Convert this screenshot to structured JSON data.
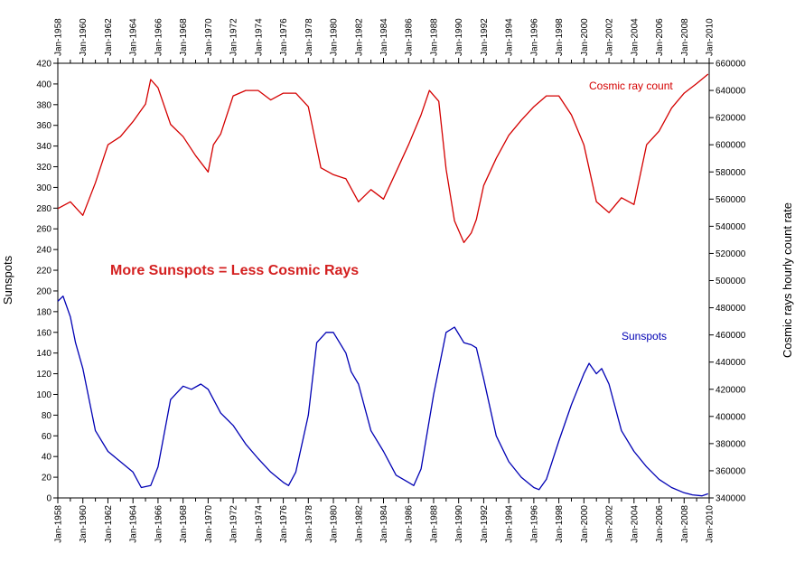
{
  "chart_data": {
    "type": "line",
    "title": "",
    "x_axis": {
      "range": [
        "Jan-1958",
        "Jan-2010"
      ],
      "tick_labels": [
        "Jan-1958",
        "Jan-1960",
        "Jan-1962",
        "Jan-1964",
        "Jan-1966",
        "Jan-1968",
        "Jan-1970",
        "Jan-1972",
        "Jan-1974",
        "Jan-1976",
        "Jan-1978",
        "Jan-1980",
        "Jan-1982",
        "Jan-1984",
        "Jan-1986",
        "Jan-1988",
        "Jan-1990",
        "Jan-1992",
        "Jan-1994",
        "Jan-1996",
        "Jan-1998",
        "Jan-2000",
        "Jan-2002",
        "Jan-2004",
        "Jan-2006",
        "Jan-2008",
        "Jan-2010"
      ],
      "minor_ticks": "yearly"
    },
    "y_left": {
      "label": "Sunspots",
      "range": [
        0,
        420
      ],
      "tick_labels": [
        "0",
        "20",
        "40",
        "60",
        "80",
        "100",
        "120",
        "140",
        "160",
        "180",
        "200",
        "220",
        "240",
        "260",
        "280",
        "300",
        "320",
        "340",
        "360",
        "380",
        "400",
        "420"
      ]
    },
    "y_right": {
      "label": "Cosmic rays hourly count rate",
      "range": [
        340000,
        660000
      ],
      "tick_labels": [
        "340000",
        "360000",
        "380000",
        "400000",
        "420000",
        "440000",
        "460000",
        "480000",
        "500000",
        "520000",
        "540000",
        "560000",
        "580000",
        "600000",
        "620000",
        "640000",
        "660000"
      ]
    },
    "annotation": "More Sunspots = Less Cosmic Rays",
    "series": [
      {
        "name": "Cosmic ray count",
        "axis": "right",
        "color": "#d40000",
        "x": [
          "1958-01",
          "1959-01",
          "1960-01",
          "1961-01",
          "1962-01",
          "1963-01",
          "1964-01",
          "1965-01",
          "1965-06",
          "1966-01",
          "1967-01",
          "1968-01",
          "1969-01",
          "1970-01",
          "1970-06",
          "1971-01",
          "1972-01",
          "1973-01",
          "1974-01",
          "1975-01",
          "1976-01",
          "1977-01",
          "1978-01",
          "1979-01",
          "1980-01",
          "1981-01",
          "1982-01",
          "1983-01",
          "1984-01",
          "1985-01",
          "1986-01",
          "1987-01",
          "1987-09",
          "1988-06",
          "1989-01",
          "1989-09",
          "1990-06",
          "1991-01",
          "1991-06",
          "1992-01",
          "1993-01",
          "1994-01",
          "1995-01",
          "1996-01",
          "1997-01",
          "1998-01",
          "1999-01",
          "2000-01",
          "2001-01",
          "2002-01",
          "2003-01",
          "2004-01",
          "2005-01",
          "2006-01",
          "2007-01",
          "2008-01",
          "2009-01",
          "2009-12"
        ],
        "values": [
          553000,
          558000,
          548000,
          572000,
          600000,
          606000,
          617000,
          630000,
          648000,
          642000,
          615000,
          606000,
          592000,
          580000,
          600000,
          608000,
          636000,
          640000,
          640000,
          633000,
          638000,
          638000,
          628000,
          583000,
          578000,
          575000,
          558000,
          567000,
          560000,
          580000,
          600000,
          622000,
          640000,
          632000,
          582000,
          544000,
          528000,
          535000,
          545000,
          570000,
          590000,
          607000,
          618000,
          628000,
          636000,
          636000,
          622000,
          600000,
          558000,
          550000,
          561000,
          556000,
          600000,
          610000,
          627000,
          638000,
          645000,
          652000
        ]
      },
      {
        "name": "Sunspots",
        "axis": "left",
        "color": "#0000b4",
        "x": [
          "1958-01",
          "1958-06",
          "1959-01",
          "1959-06",
          "1960-01",
          "1960-06",
          "1961-01",
          "1962-01",
          "1963-01",
          "1964-01",
          "1964-09",
          "1965-06",
          "1966-01",
          "1967-01",
          "1968-01",
          "1968-09",
          "1969-06",
          "1970-01",
          "1971-01",
          "1972-01",
          "1973-01",
          "1974-01",
          "1975-01",
          "1976-01",
          "1976-06",
          "1977-01",
          "1978-01",
          "1978-09",
          "1979-06",
          "1980-01",
          "1981-01",
          "1981-06",
          "1982-01",
          "1983-01",
          "1984-01",
          "1985-01",
          "1986-01",
          "1986-06",
          "1987-01",
          "1988-01",
          "1989-01",
          "1989-09",
          "1990-06",
          "1991-01",
          "1991-06",
          "1992-01",
          "1993-01",
          "1994-01",
          "1995-01",
          "1996-01",
          "1996-06",
          "1997-01",
          "1998-01",
          "1999-01",
          "2000-01",
          "2000-06",
          "2001-01",
          "2001-06",
          "2002-01",
          "2003-01",
          "2004-01",
          "2005-01",
          "2006-01",
          "2007-01",
          "2008-01",
          "2008-09",
          "2009-06",
          "2009-12"
        ],
        "values": [
          190,
          195,
          175,
          150,
          125,
          100,
          65,
          45,
          35,
          25,
          10,
          12,
          30,
          95,
          108,
          105,
          110,
          105,
          82,
          70,
          52,
          38,
          25,
          15,
          12,
          25,
          80,
          150,
          160,
          160,
          140,
          122,
          110,
          65,
          45,
          22,
          15,
          12,
          28,
          100,
          160,
          165,
          150,
          148,
          145,
          115,
          60,
          35,
          20,
          10,
          8,
          18,
          55,
          90,
          120,
          130,
          120,
          125,
          110,
          65,
          45,
          30,
          18,
          10,
          5,
          3,
          2,
          4
        ]
      }
    ]
  }
}
